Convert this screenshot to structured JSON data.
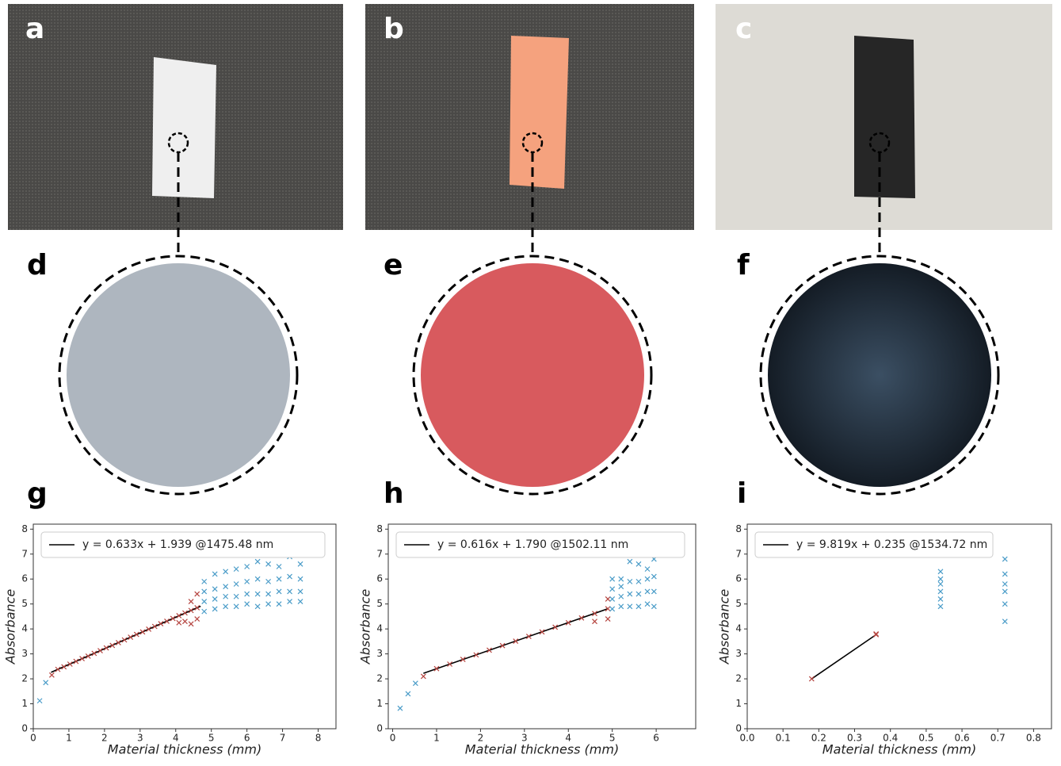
{
  "panel_labels": [
    "a",
    "b",
    "c",
    "d",
    "e",
    "f",
    "g",
    "h",
    "i"
  ],
  "chart_data": [
    {
      "type": "scatter",
      "x_label": "Material thickness (mm)",
      "y_label": "Absorbance",
      "xlim": [
        0,
        8.5
      ],
      "ylim": [
        0,
        8.2
      ],
      "xticks": [
        0,
        1,
        2,
        3,
        4,
        5,
        6,
        7,
        8
      ],
      "yticks": [
        0,
        1,
        2,
        3,
        4,
        5,
        6,
        7,
        8
      ],
      "legend": "upper left",
      "series": [
        {
          "name": "y = 0.633x + 1.939 @1475.48 nm",
          "style": "line",
          "color": "#000000",
          "x": [
            0.5,
            4.7
          ],
          "values": [
            2.26,
            4.91
          ]
        },
        {
          "style": "marker",
          "marker": "x",
          "color": "#b5443f",
          "x": [
            0.52,
            0.69,
            0.86,
            1.03,
            1.2,
            1.37,
            1.54,
            1.71,
            1.88,
            2.05,
            2.22,
            2.39,
            2.56,
            2.73,
            2.9,
            3.07,
            3.24,
            3.41,
            3.58,
            3.75,
            3.92,
            4.09,
            4.26,
            4.43,
            4.6,
            4.09,
            4.26,
            4.43,
            4.43,
            4.6,
            4.6
          ],
          "values": [
            2.15,
            2.38,
            2.48,
            2.59,
            2.7,
            2.81,
            2.91,
            3.02,
            3.13,
            3.24,
            3.34,
            3.45,
            3.56,
            3.67,
            3.78,
            3.88,
            3.99,
            4.1,
            4.21,
            4.31,
            4.42,
            4.53,
            4.64,
            4.74,
            4.85,
            4.25,
            4.3,
            4.2,
            5.1,
            4.4,
            5.4
          ]
        },
        {
          "style": "marker",
          "marker": "x",
          "color": "#4a9cc8",
          "x": [
            0.18,
            0.35,
            4.8,
            4.8,
            4.8,
            4.8,
            5.1,
            5.1,
            5.1,
            5.1,
            5.4,
            5.4,
            5.4,
            5.4,
            5.7,
            5.7,
            5.7,
            5.7,
            6.0,
            6.0,
            6.0,
            6.0,
            6.3,
            6.3,
            6.3,
            6.3,
            6.6,
            6.6,
            6.6,
            6.6,
            6.9,
            6.9,
            6.9,
            6.9,
            7.2,
            7.2,
            7.2,
            7.2,
            7.5,
            7.5,
            7.5,
            7.5
          ],
          "values": [
            1.12,
            1.85,
            4.7,
            5.1,
            5.5,
            5.9,
            4.8,
            5.2,
            5.6,
            6.2,
            4.9,
            5.3,
            5.7,
            6.3,
            4.9,
            5.3,
            5.8,
            6.4,
            5.0,
            5.4,
            5.9,
            6.5,
            4.9,
            5.4,
            6.0,
            6.7,
            5.0,
            5.4,
            5.9,
            6.6,
            5.0,
            5.5,
            6.0,
            6.5,
            5.1,
            5.5,
            6.1,
            6.9,
            5.1,
            5.5,
            6.0,
            6.6
          ]
        }
      ]
    },
    {
      "type": "scatter",
      "x_label": "Material thickness (mm)",
      "y_label": "Absorbance",
      "xlim": [
        -0.1,
        6.9
      ],
      "ylim": [
        0,
        8.2
      ],
      "xticks": [
        0,
        1,
        2,
        3,
        4,
        5,
        6
      ],
      "yticks": [
        0,
        1,
        2,
        3,
        4,
        5,
        6,
        7,
        8
      ],
      "legend": "upper left",
      "series": [
        {
          "name": "y = 0.616x + 1.790 @1502.11 nm",
          "style": "line",
          "color": "#000000",
          "x": [
            0.7,
            4.9
          ],
          "values": [
            2.22,
            4.81
          ]
        },
        {
          "style": "marker",
          "marker": "x",
          "color": "#b5443f",
          "x": [
            0.7,
            1.0,
            1.3,
            1.6,
            1.9,
            2.2,
            2.5,
            2.8,
            3.1,
            3.4,
            3.7,
            4.0,
            4.3,
            4.6,
            4.9,
            4.6,
            4.9,
            4.9
          ],
          "values": [
            2.1,
            2.41,
            2.59,
            2.78,
            2.96,
            3.15,
            3.33,
            3.51,
            3.7,
            3.88,
            4.07,
            4.25,
            4.44,
            4.62,
            4.81,
            4.3,
            4.4,
            5.2
          ]
        },
        {
          "style": "marker",
          "marker": "x",
          "color": "#4a9cc8",
          "x": [
            0.17,
            0.35,
            0.52,
            5.0,
            5.0,
            5.0,
            5.0,
            5.2,
            5.2,
            5.2,
            5.2,
            5.4,
            5.4,
            5.4,
            5.4,
            5.6,
            5.6,
            5.6,
            5.6,
            5.8,
            5.8,
            5.8,
            5.8,
            5.95,
            5.95,
            5.95,
            5.95
          ],
          "values": [
            0.82,
            1.4,
            1.82,
            4.8,
            5.2,
            5.6,
            6.0,
            4.9,
            5.3,
            5.7,
            6.0,
            4.9,
            5.4,
            5.9,
            6.7,
            4.9,
            5.4,
            5.9,
            6.6,
            5.0,
            5.5,
            6.0,
            6.4,
            4.9,
            5.5,
            6.1,
            6.8
          ]
        }
      ]
    },
    {
      "type": "scatter",
      "x_label": "Material thickness (mm)",
      "y_label": "Absorbance",
      "xlim": [
        0,
        0.85
      ],
      "ylim": [
        0,
        8.2
      ],
      "xticks": [
        {
          "value": 0,
          "label": "0.0"
        },
        0.1,
        0.2,
        0.3,
        0.4,
        0.5,
        0.6,
        0.7,
        0.8
      ],
      "yticks": [
        0,
        1,
        2,
        3,
        4,
        5,
        6,
        7,
        8
      ],
      "legend": "upper left",
      "series": [
        {
          "name": "y = 9.819x + 0.235 @1534.72 nm",
          "style": "line",
          "color": "#000000",
          "x": [
            0.18,
            0.36
          ],
          "values": [
            2.0,
            3.77
          ]
        },
        {
          "style": "marker",
          "marker": "x",
          "color": "#b5443f",
          "x": [
            0.18,
            0.36,
            0.36
          ],
          "values": [
            2.0,
            3.77,
            3.8
          ]
        },
        {
          "style": "marker",
          "marker": "x",
          "color": "#4a9cc8",
          "x": [
            0.54,
            0.54,
            0.54,
            0.54,
            0.54,
            0.54,
            0.72,
            0.72,
            0.72,
            0.72,
            0.72,
            0.72
          ],
          "values": [
            4.9,
            5.2,
            5.5,
            5.8,
            6.0,
            6.3,
            4.3,
            5.0,
            5.5,
            5.8,
            6.2,
            6.8
          ]
        }
      ]
    }
  ]
}
